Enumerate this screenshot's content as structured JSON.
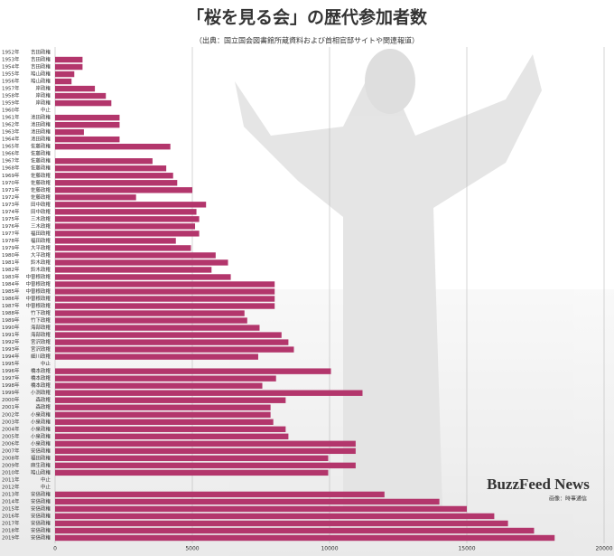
{
  "chart_data": {
    "type": "bar",
    "orientation": "horizontal",
    "title": "「桜を見る会」の歴代参加者数",
    "subtitle": "（出典：国立国会図書館所蔵資料および首相官邸サイトや関連報道）",
    "logo": "BuzzFeed News",
    "credit": "画像：時事通信",
    "color": "#b3366c",
    "grid": true,
    "xlim": [
      0,
      20000
    ],
    "xticks": [
      0,
      5000,
      10000,
      15000,
      20000
    ],
    "categories": [
      "1952年",
      "1953年",
      "1954年",
      "1955年",
      "1956年",
      "1957年",
      "1958年",
      "1959年",
      "1960年",
      "1961年",
      "1962年",
      "1963年",
      "1964年",
      "1965年",
      "1966年",
      "1967年",
      "1968年",
      "1969年",
      "1970年",
      "1971年",
      "1972年",
      "1973年",
      "1974年",
      "1975年",
      "1976年",
      "1977年",
      "1978年",
      "1979年",
      "1980年",
      "1981年",
      "1982年",
      "1983年",
      "1984年",
      "1985年",
      "1986年",
      "1987年",
      "1988年",
      "1989年",
      "1990年",
      "1991年",
      "1992年",
      "1993年",
      "1994年",
      "1995年",
      "1996年",
      "1997年",
      "1998年",
      "1999年",
      "2000年",
      "2001年",
      "2002年",
      "2003年",
      "2004年",
      "2005年",
      "2006年",
      "2007年",
      "2008年",
      "2009年",
      "2010年",
      "2011年",
      "2012年",
      "2013年",
      "2014年",
      "2015年",
      "2016年",
      "2017年",
      "2018年",
      "2019年"
    ],
    "governments": [
      "吉田政権",
      "吉田政権",
      "吉田政権",
      "鳩山政権",
      "鳩山政権",
      "岸政権",
      "岸政権",
      "岸政権",
      "中止",
      "池田政権",
      "池田政権",
      "池田政権",
      "池田政権",
      "佐藤政権",
      "佐藤政権",
      "佐藤政権",
      "佐藤政権",
      "佐藤政権",
      "佐藤政権",
      "佐藤政権",
      "佐藤政権",
      "田中政権",
      "田中政権",
      "三木政権",
      "三木政権",
      "福田政権",
      "福田政権",
      "大平政権",
      "大平政権",
      "鈴木政権",
      "鈴木政権",
      "中曽根政権",
      "中曽根政権",
      "中曽根政権",
      "中曽根政権",
      "中曽根政権",
      "竹下政権",
      "竹下政権",
      "海部政権",
      "海部政権",
      "宮沢政権",
      "宮沢政権",
      "細川政権",
      "中止",
      "橋本政権",
      "橋本政権",
      "橋本政権",
      "小渕政権",
      "森政権",
      "森政権",
      "小泉政権",
      "小泉政権",
      "小泉政権",
      "小泉政権",
      "小泉政権",
      "安倍政権",
      "福田政権",
      "麻生政権",
      "鳩山政権",
      "中止",
      "中止",
      "安倍政権",
      "安倍政権",
      "安倍政権",
      "安倍政権",
      "安倍政権",
      "安倍政権",
      "安倍政権"
    ],
    "values": [
      null,
      1000,
      1000,
      700,
      600,
      1450,
      1850,
      2050,
      null,
      2350,
      2350,
      1050,
      2350,
      4200,
      null,
      3550,
      4050,
      4300,
      4450,
      5000,
      2950,
      5500,
      5150,
      5250,
      5100,
      5250,
      4400,
      4950,
      5850,
      6300,
      5700,
      6400,
      8000,
      8000,
      8000,
      8000,
      6900,
      7000,
      7450,
      8250,
      8500,
      8700,
      7400,
      null,
      10050,
      8050,
      7550,
      11200,
      8400,
      7850,
      7850,
      7950,
      8400,
      8500,
      10950,
      10950,
      9950,
      10950,
      9950,
      null,
      null,
      12000,
      14000,
      15000,
      16000,
      16500,
      17450,
      18200
    ]
  }
}
